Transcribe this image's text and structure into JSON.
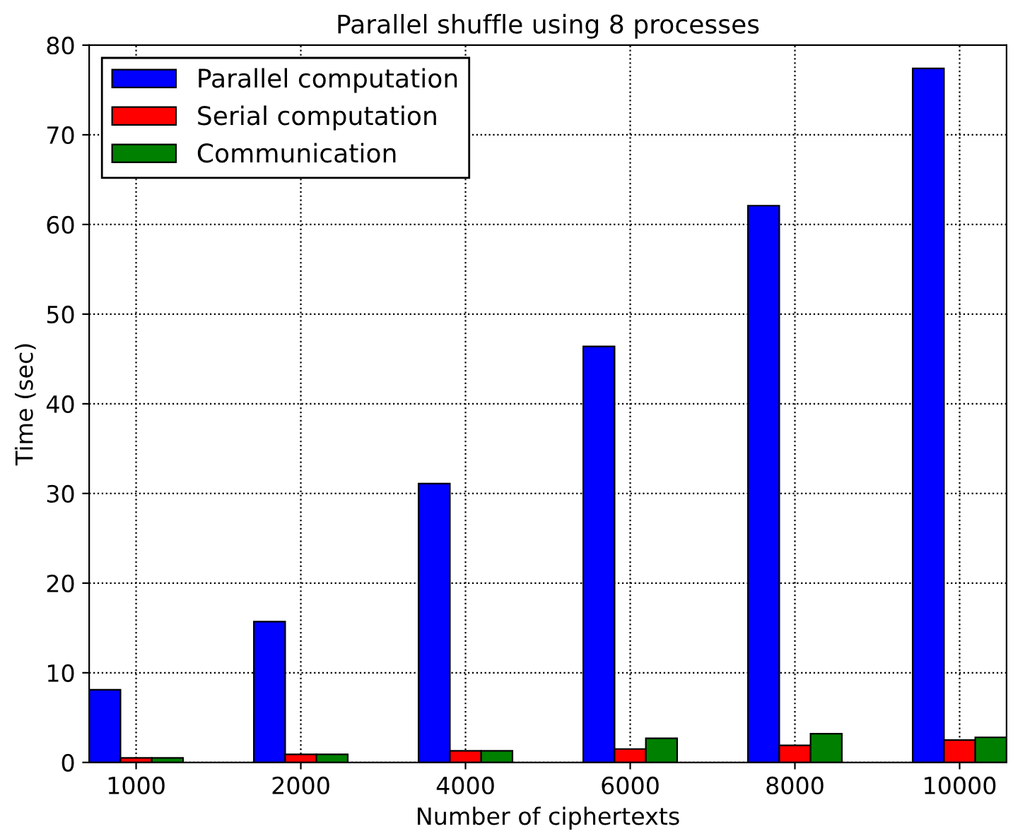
{
  "chart_data": {
    "type": "bar",
    "title": "Parallel shuffle using 8 processes",
    "xlabel": "Number of ciphertexts",
    "ylabel": "Time (sec)",
    "categories": [
      "1000",
      "2000",
      "4000",
      "6000",
      "8000",
      "10000"
    ],
    "series": [
      {
        "name": "Parallel computation",
        "color": "#0000ff",
        "values": [
          8.1,
          15.7,
          31.1,
          46.4,
          62.1,
          77.4
        ]
      },
      {
        "name": "Serial computation",
        "color": "#ff0000",
        "values": [
          0.5,
          0.9,
          1.3,
          1.5,
          1.9,
          2.5
        ]
      },
      {
        "name": "Communication",
        "color": "#008000",
        "values": [
          0.5,
          0.9,
          1.3,
          2.7,
          3.2,
          2.8
        ]
      }
    ],
    "ylim": [
      0,
      80
    ],
    "yticks": [
      0,
      10,
      20,
      30,
      40,
      50,
      60,
      70,
      80
    ],
    "grid": true,
    "legend": "top left"
  }
}
